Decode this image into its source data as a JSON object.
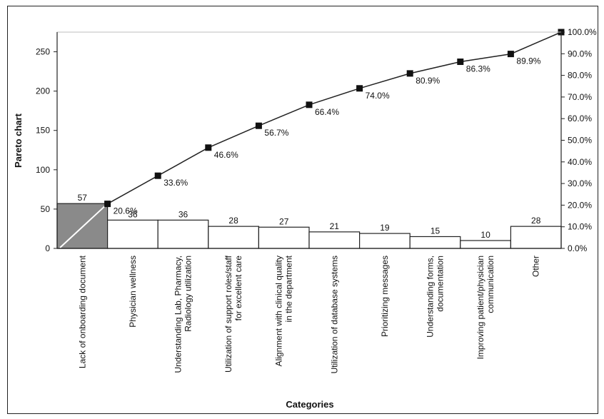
{
  "chart_data": {
    "type": "bar",
    "title": "",
    "ylabel": "Pareto chart",
    "xlabel": "Categories",
    "ylim": [
      0,
      275
    ],
    "y2lim": [
      0,
      100
    ],
    "yticks": [
      "0",
      "50",
      "100",
      "150",
      "200",
      "250"
    ],
    "y2ticks": [
      "0.0%",
      "10.0%",
      "20.0%",
      "30.0%",
      "40.0%",
      "50.0%",
      "60.0%",
      "70.0%",
      "80.0%",
      "90.0%",
      "100.0%"
    ],
    "categories": [
      [
        "Lack of onboarding document"
      ],
      [
        "Physician wellness"
      ],
      [
        "Understanding Lab, Pharmacy,",
        "Radiology utilization"
      ],
      [
        "Utilization of support roles/staff",
        "for excellent care"
      ],
      [
        "Alignment with clinical quality",
        "in the department"
      ],
      [
        "Utilization of database systems"
      ],
      [
        "Prioritizing messages"
      ],
      [
        "Understanding forms,",
        "documentation"
      ],
      [
        "Improving patient/physician",
        "communication"
      ],
      [
        "Other"
      ]
    ],
    "series": [
      {
        "type": "bar",
        "values": [
          57,
          36,
          36,
          28,
          27,
          21,
          19,
          15,
          10,
          28
        ],
        "labels": [
          "57",
          "36",
          "36",
          "28",
          "27",
          "21",
          "19",
          "15",
          "10",
          "28"
        ]
      },
      {
        "type": "line",
        "axis": "right",
        "values": [
          20.6,
          33.6,
          46.6,
          56.7,
          66.4,
          74.0,
          80.9,
          86.3,
          89.9,
          100.0
        ],
        "labels": [
          "20.6%",
          "33.6%",
          "46.6%",
          "56.7%",
          "66.4%",
          "74.0%",
          "80.9%",
          "86.3%",
          "89.9%",
          ""
        ]
      }
    ],
    "highlight_color": "#8a8a8a",
    "bar_color": "#ffffff",
    "line_color": "#222222",
    "grid": false,
    "legend": "none"
  }
}
